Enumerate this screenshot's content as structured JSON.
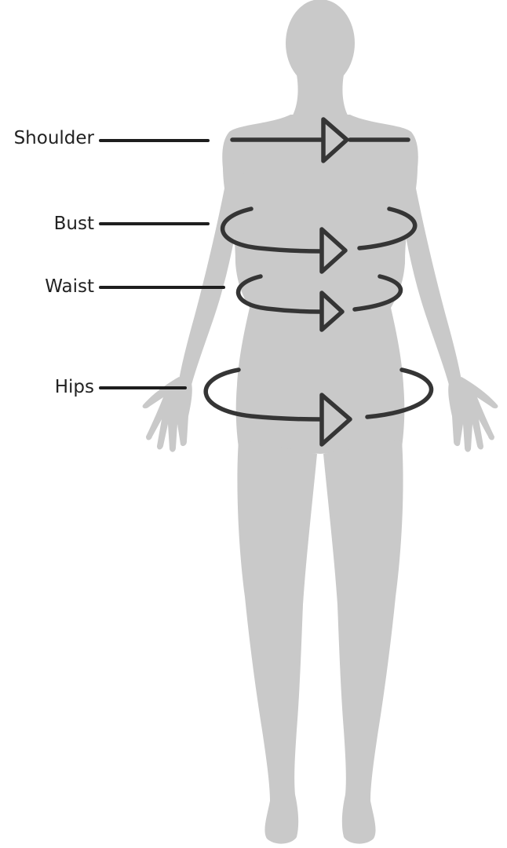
{
  "measurements": {
    "shoulder": "Shoulder",
    "bust": "Bust",
    "waist": "Waist",
    "hips": "Hips"
  },
  "colors": {
    "body_fill": "#c9c9c9",
    "line": "#353535",
    "text": "#222222"
  },
  "icons": {
    "measurement_arrow": "arrow-right-icon"
  }
}
